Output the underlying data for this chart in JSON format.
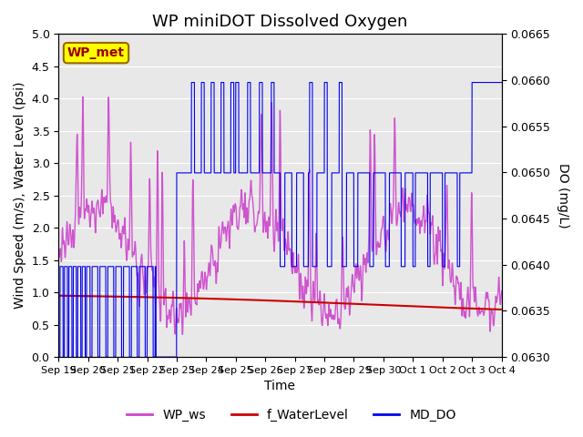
{
  "title": "WP miniDOT Dissolved Oxygen",
  "xlabel": "Time",
  "ylabel_left": "Wind Speed (m/s), Water Level (psi)",
  "ylabel_right": "DO (mg/L)",
  "ylim_left": [
    0.0,
    5.0
  ],
  "ylim_right": [
    0.063,
    0.0665
  ],
  "yticks_left": [
    0.0,
    0.5,
    1.0,
    1.5,
    2.0,
    2.5,
    3.0,
    3.5,
    4.0,
    4.5,
    5.0
  ],
  "yticks_right": [
    0.063,
    0.0635,
    0.064,
    0.0645,
    0.065,
    0.0655,
    0.066,
    0.0665
  ],
  "bg_color": "#e8e8e8",
  "legend_entries": [
    "WP_ws",
    "f_WaterLevel",
    "MD_DO"
  ],
  "legend_colors": [
    "#cc44cc",
    "#cc0000",
    "#0000ee"
  ],
  "wp_met_box_color": "#ffff00",
  "wp_met_text_color": "#990000",
  "wp_met_border_color": "#996600",
  "title_fontsize": 13,
  "axis_fontsize": 10,
  "tick_fontsize": 9,
  "legend_fontsize": 10
}
